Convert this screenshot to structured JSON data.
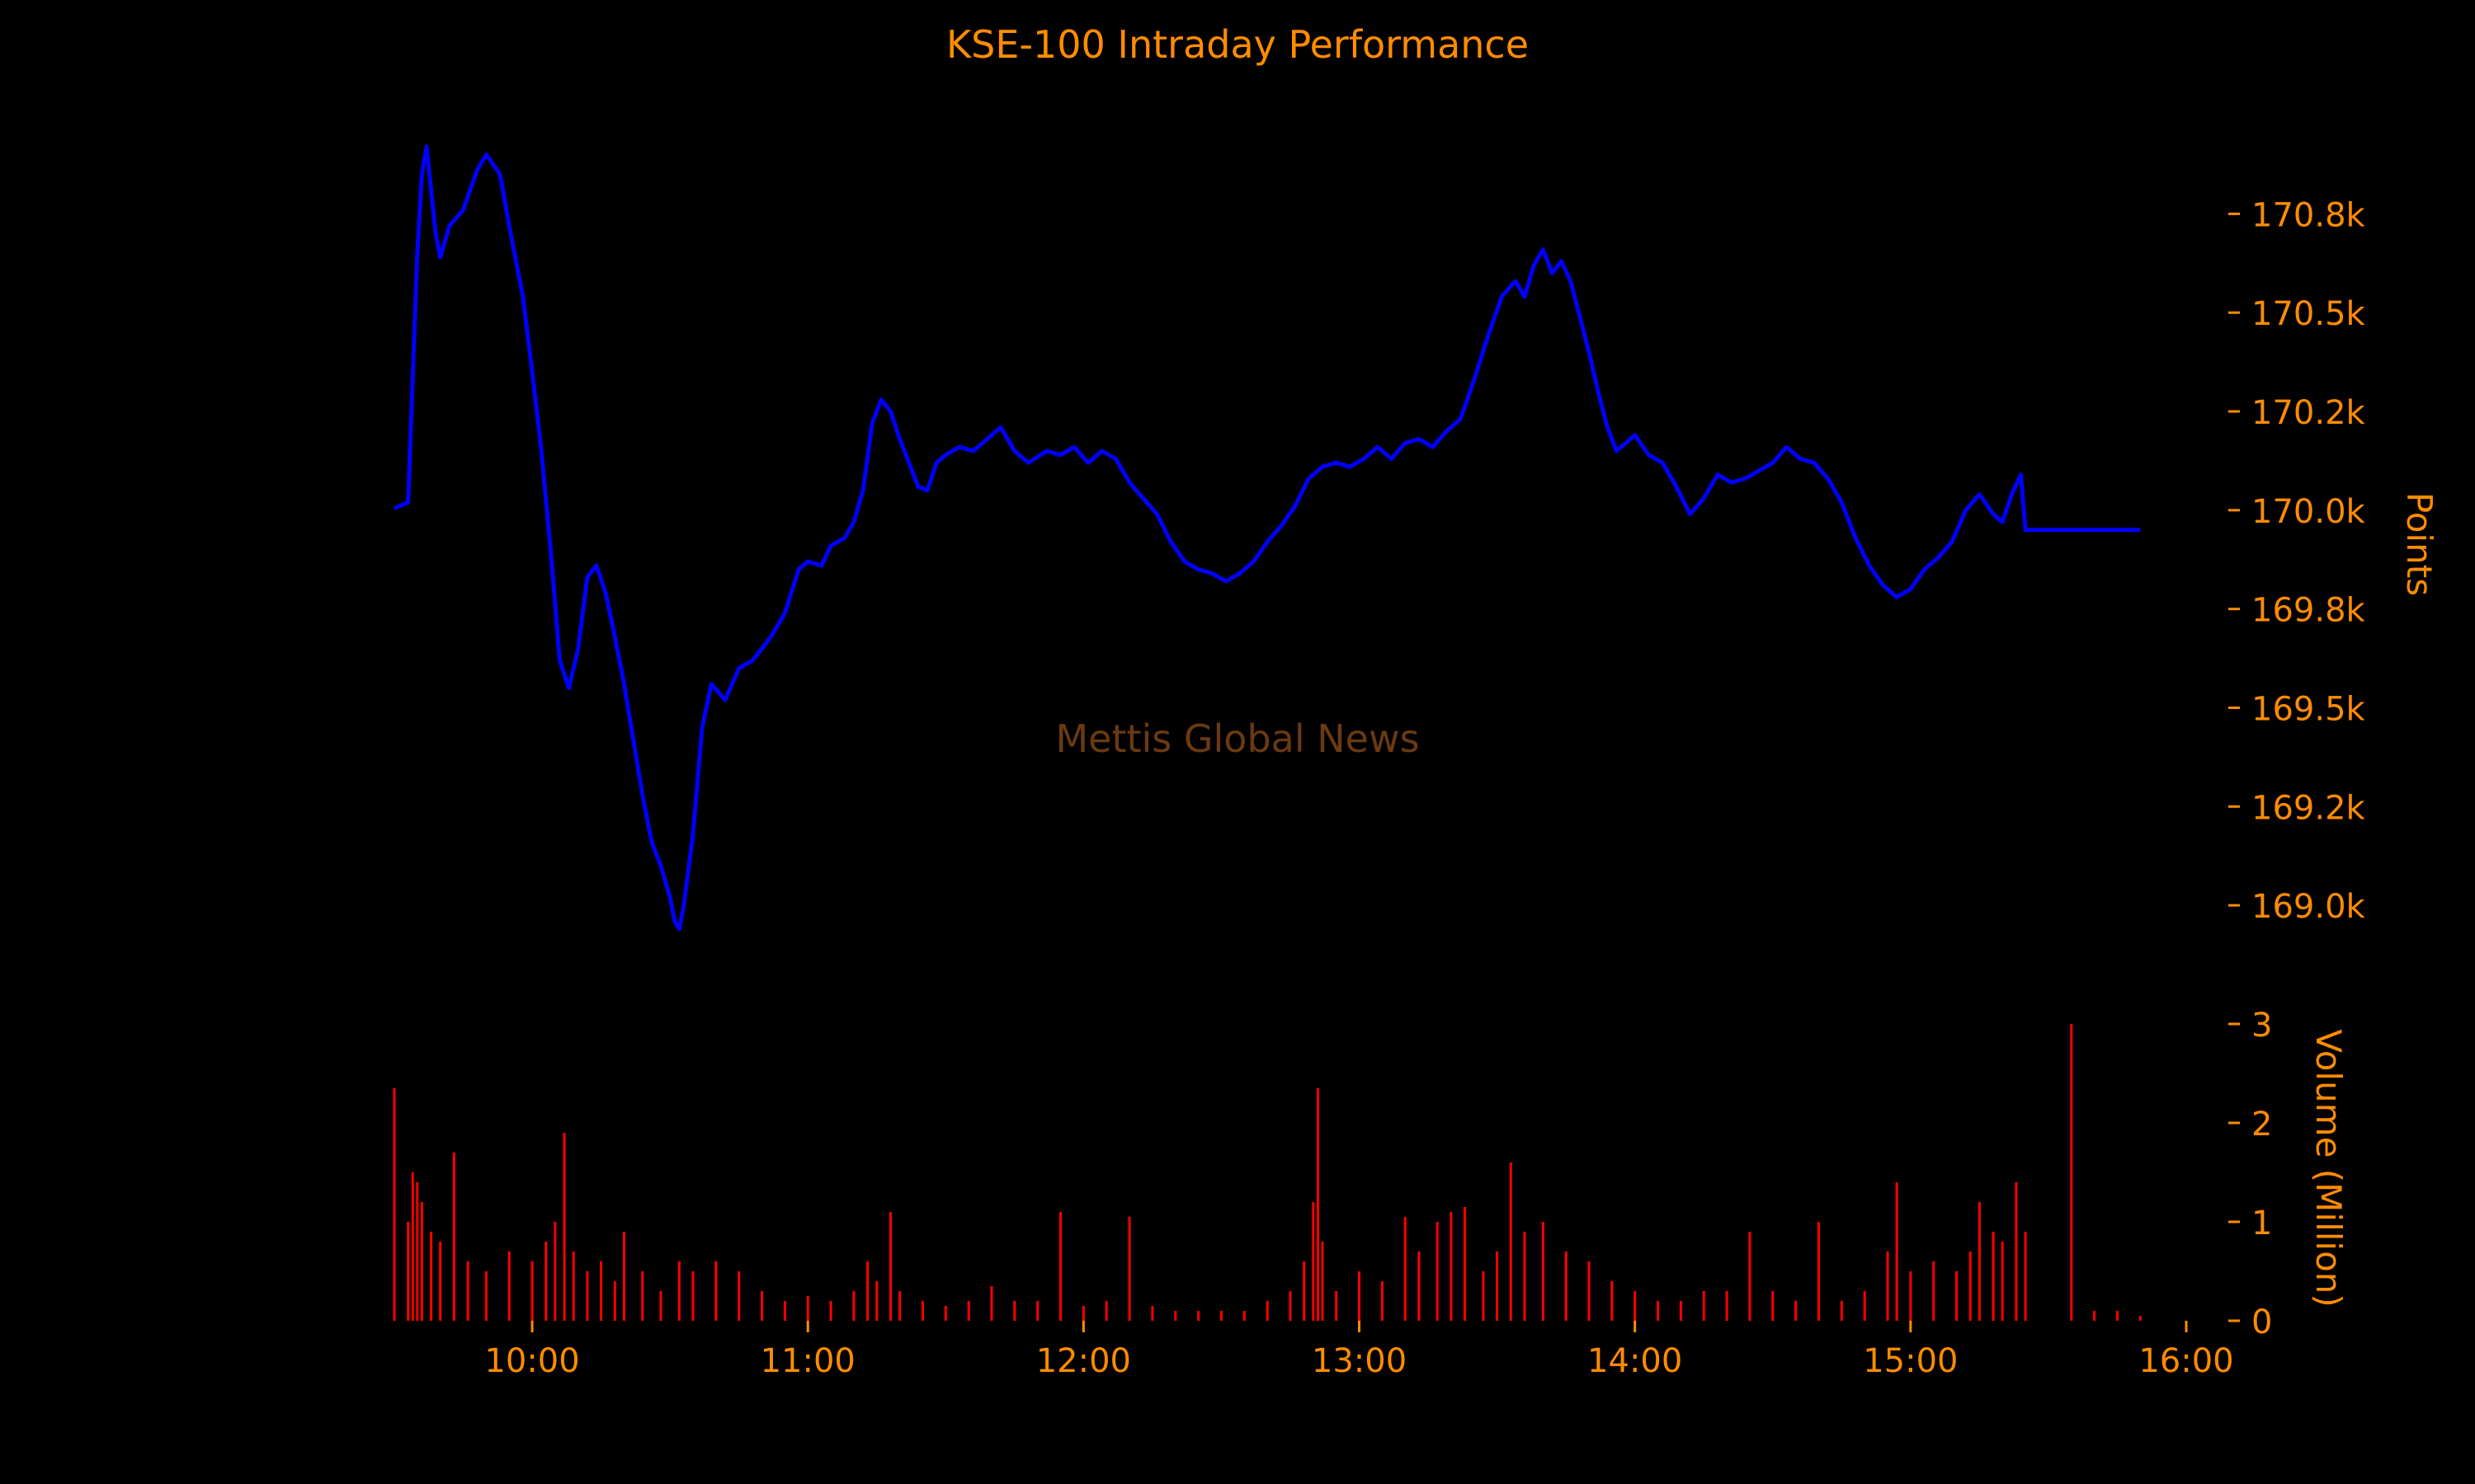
{
  "colors": {
    "background": "#000000",
    "text": "#ff8c00",
    "price_line": "#0000ff",
    "volume_bars": "#ff0000",
    "watermark": "#6b3a10"
  },
  "title": "KSE-100 Intraday Performance",
  "watermark": "Mettis Global News",
  "chart_data": [
    {
      "type": "line",
      "name": "price-panel",
      "title": "KSE-100 Intraday Performance",
      "ylabel": "Points",
      "ylim": [
        168850,
        171020
      ],
      "xlim": [
        "09:30",
        "16:00"
      ],
      "yticks": [
        {
          "value": 169000,
          "label": "169.0k"
        },
        {
          "value": 169250,
          "label": "169.2k"
        },
        {
          "value": 169500,
          "label": "169.5k"
        },
        {
          "value": 169750,
          "label": "169.8k"
        },
        {
          "value": 170000,
          "label": "170.0k"
        },
        {
          "value": 170250,
          "label": "170.2k"
        },
        {
          "value": 170500,
          "label": "170.5k"
        },
        {
          "value": 170750,
          "label": "170.8k"
        }
      ],
      "points": [
        [
          "09:30",
          170005
        ],
        [
          "09:33",
          170020
        ],
        [
          "09:35",
          170650
        ],
        [
          "09:36",
          170850
        ],
        [
          "09:37",
          170920
        ],
        [
          "09:39",
          170700
        ],
        [
          "09:40",
          170640
        ],
        [
          "09:42",
          170720
        ],
        [
          "09:45",
          170760
        ],
        [
          "09:48",
          170860
        ],
        [
          "09:50",
          170900
        ],
        [
          "09:53",
          170850
        ],
        [
          "09:55",
          170720
        ],
        [
          "09:58",
          170540
        ],
        [
          "10:00",
          170350
        ],
        [
          "10:02",
          170150
        ],
        [
          "10:04",
          169900
        ],
        [
          "10:06",
          169620
        ],
        [
          "10:08",
          169550
        ],
        [
          "10:10",
          169650
        ],
        [
          "10:12",
          169830
        ],
        [
          "10:14",
          169860
        ],
        [
          "10:16",
          169790
        ],
        [
          "10:18",
          169680
        ],
        [
          "10:20",
          169560
        ],
        [
          "10:22",
          169420
        ],
        [
          "10:24",
          169280
        ],
        [
          "10:26",
          169160
        ],
        [
          "10:28",
          169100
        ],
        [
          "10:30",
          169020
        ],
        [
          "10:31",
          168960
        ],
        [
          "10:32",
          168940
        ],
        [
          "10:33",
          169000
        ],
        [
          "10:35",
          169180
        ],
        [
          "10:37",
          169450
        ],
        [
          "10:39",
          169560
        ],
        [
          "10:42",
          169520
        ],
        [
          "10:45",
          169600
        ],
        [
          "10:48",
          169620
        ],
        [
          "10:52",
          169680
        ],
        [
          "10:55",
          169740
        ],
        [
          "10:58",
          169850
        ],
        [
          "11:00",
          169870
        ],
        [
          "11:03",
          169860
        ],
        [
          "11:05",
          169910
        ],
        [
          "11:08",
          169930
        ],
        [
          "11:10",
          169970
        ],
        [
          "11:12",
          170050
        ],
        [
          "11:14",
          170220
        ],
        [
          "11:16",
          170280
        ],
        [
          "11:18",
          170250
        ],
        [
          "11:20",
          170180
        ],
        [
          "11:22",
          170120
        ],
        [
          "11:24",
          170060
        ],
        [
          "11:26",
          170050
        ],
        [
          "11:28",
          170120
        ],
        [
          "11:30",
          170140
        ],
        [
          "11:33",
          170160
        ],
        [
          "11:36",
          170150
        ],
        [
          "11:39",
          170180
        ],
        [
          "11:42",
          170210
        ],
        [
          "11:45",
          170150
        ],
        [
          "11:48",
          170120
        ],
        [
          "11:52",
          170150
        ],
        [
          "11:55",
          170140
        ],
        [
          "11:58",
          170160
        ],
        [
          "12:01",
          170120
        ],
        [
          "12:04",
          170150
        ],
        [
          "12:07",
          170130
        ],
        [
          "12:10",
          170070
        ],
        [
          "12:13",
          170030
        ],
        [
          "12:16",
          169990
        ],
        [
          "12:19",
          169920
        ],
        [
          "12:22",
          169870
        ],
        [
          "12:25",
          169850
        ],
        [
          "12:28",
          169840
        ],
        [
          "12:31",
          169820
        ],
        [
          "12:34",
          169840
        ],
        [
          "12:37",
          169870
        ],
        [
          "12:40",
          169920
        ],
        [
          "12:43",
          169960
        ],
        [
          "12:46",
          170010
        ],
        [
          "12:49",
          170080
        ],
        [
          "12:52",
          170110
        ],
        [
          "12:55",
          170120
        ],
        [
          "12:58",
          170110
        ],
        [
          "13:01",
          170130
        ],
        [
          "13:04",
          170160
        ],
        [
          "13:07",
          170130
        ],
        [
          "13:10",
          170170
        ],
        [
          "13:13",
          170180
        ],
        [
          "13:16",
          170160
        ],
        [
          "13:19",
          170200
        ],
        [
          "13:22",
          170230
        ],
        [
          "13:25",
          170330
        ],
        [
          "13:28",
          170440
        ],
        [
          "13:31",
          170540
        ],
        [
          "13:34",
          170580
        ],
        [
          "13:36",
          170540
        ],
        [
          "13:38",
          170620
        ],
        [
          "13:40",
          170660
        ],
        [
          "13:42",
          170600
        ],
        [
          "13:44",
          170630
        ],
        [
          "13:46",
          170580
        ],
        [
          "13:48",
          170490
        ],
        [
          "13:50",
          170400
        ],
        [
          "13:52",
          170300
        ],
        [
          "13:54",
          170210
        ],
        [
          "13:56",
          170150
        ],
        [
          "13:58",
          170170
        ],
        [
          "14:00",
          170190
        ],
        [
          "14:03",
          170140
        ],
        [
          "14:06",
          170120
        ],
        [
          "14:09",
          170060
        ],
        [
          "14:12",
          169990
        ],
        [
          "14:15",
          170030
        ],
        [
          "14:18",
          170090
        ],
        [
          "14:21",
          170070
        ],
        [
          "14:24",
          170080
        ],
        [
          "14:27",
          170100
        ],
        [
          "14:30",
          170120
        ],
        [
          "14:33",
          170160
        ],
        [
          "14:36",
          170130
        ],
        [
          "14:39",
          170120
        ],
        [
          "14:42",
          170080
        ],
        [
          "14:45",
          170020
        ],
        [
          "14:48",
          169930
        ],
        [
          "14:51",
          169860
        ],
        [
          "14:54",
          169810
        ],
        [
          "14:57",
          169780
        ],
        [
          "15:00",
          169800
        ],
        [
          "15:03",
          169850
        ],
        [
          "15:06",
          169880
        ],
        [
          "15:09",
          169920
        ],
        [
          "15:12",
          170000
        ],
        [
          "15:15",
          170040
        ],
        [
          "15:18",
          169990
        ],
        [
          "15:20",
          169970
        ],
        [
          "15:22",
          170040
        ],
        [
          "15:24",
          170090
        ],
        [
          "15:25",
          169950
        ],
        [
          "15:40",
          169950
        ],
        [
          "15:50",
          169950
        ]
      ]
    },
    {
      "type": "bar",
      "name": "volume-panel",
      "ylabel": "Volume (Million)",
      "ylim": [
        0,
        3
      ],
      "xlim": [
        "09:30",
        "16:00"
      ],
      "yticks": [
        {
          "value": 0,
          "label": "0"
        },
        {
          "value": 1,
          "label": "1"
        },
        {
          "value": 2,
          "label": "2"
        },
        {
          "value": 3,
          "label": "3"
        }
      ],
      "xticks": [
        "10:00",
        "11:00",
        "12:00",
        "13:00",
        "14:00",
        "15:00",
        "16:00"
      ],
      "bars": [
        [
          "09:30",
          2.35
        ],
        [
          "09:33",
          1.0
        ],
        [
          "09:34",
          1.5
        ],
        [
          "09:35",
          1.4
        ],
        [
          "09:36",
          1.2
        ],
        [
          "09:38",
          0.9
        ],
        [
          "09:40",
          0.8
        ],
        [
          "09:43",
          1.7
        ],
        [
          "09:46",
          0.6
        ],
        [
          "09:50",
          0.5
        ],
        [
          "09:55",
          0.7
        ],
        [
          "10:00",
          0.6
        ],
        [
          "10:03",
          0.8
        ],
        [
          "10:05",
          1.0
        ],
        [
          "10:07",
          1.9
        ],
        [
          "10:09",
          0.7
        ],
        [
          "10:12",
          0.5
        ],
        [
          "10:15",
          0.6
        ],
        [
          "10:18",
          0.4
        ],
        [
          "10:20",
          0.9
        ],
        [
          "10:24",
          0.5
        ],
        [
          "10:28",
          0.3
        ],
        [
          "10:32",
          0.6
        ],
        [
          "10:35",
          0.5
        ],
        [
          "10:40",
          0.6
        ],
        [
          "10:45",
          0.5
        ],
        [
          "10:50",
          0.3
        ],
        [
          "10:55",
          0.2
        ],
        [
          "11:00",
          0.25
        ],
        [
          "11:05",
          0.2
        ],
        [
          "11:10",
          0.3
        ],
        [
          "11:13",
          0.6
        ],
        [
          "11:15",
          0.4
        ],
        [
          "11:18",
          1.1
        ],
        [
          "11:20",
          0.3
        ],
        [
          "11:25",
          0.2
        ],
        [
          "11:30",
          0.15
        ],
        [
          "11:35",
          0.2
        ],
        [
          "11:40",
          0.35
        ],
        [
          "11:45",
          0.2
        ],
        [
          "11:50",
          0.2
        ],
        [
          "11:55",
          1.1
        ],
        [
          "12:00",
          0.15
        ],
        [
          "12:05",
          0.2
        ],
        [
          "12:10",
          1.05
        ],
        [
          "12:15",
          0.15
        ],
        [
          "12:20",
          0.1
        ],
        [
          "12:25",
          0.1
        ],
        [
          "12:30",
          0.1
        ],
        [
          "12:35",
          0.1
        ],
        [
          "12:40",
          0.2
        ],
        [
          "12:45",
          0.3
        ],
        [
          "12:48",
          0.6
        ],
        [
          "12:50",
          1.2
        ],
        [
          "12:51",
          2.35
        ],
        [
          "12:52",
          0.8
        ],
        [
          "12:55",
          0.3
        ],
        [
          "13:00",
          0.5
        ],
        [
          "13:05",
          0.4
        ],
        [
          "13:10",
          1.05
        ],
        [
          "13:13",
          0.7
        ],
        [
          "13:17",
          1.0
        ],
        [
          "13:20",
          1.1
        ],
        [
          "13:23",
          1.15
        ],
        [
          "13:27",
          0.5
        ],
        [
          "13:30",
          0.7
        ],
        [
          "13:33",
          1.6
        ],
        [
          "13:36",
          0.9
        ],
        [
          "13:40",
          1.0
        ],
        [
          "13:45",
          0.7
        ],
        [
          "13:50",
          0.6
        ],
        [
          "13:55",
          0.4
        ],
        [
          "14:00",
          0.3
        ],
        [
          "14:05",
          0.2
        ],
        [
          "14:10",
          0.2
        ],
        [
          "14:15",
          0.3
        ],
        [
          "14:20",
          0.3
        ],
        [
          "14:25",
          0.9
        ],
        [
          "14:30",
          0.3
        ],
        [
          "14:35",
          0.2
        ],
        [
          "14:40",
          1.0
        ],
        [
          "14:45",
          0.2
        ],
        [
          "14:50",
          0.3
        ],
        [
          "14:55",
          0.7
        ],
        [
          "14:57",
          1.4
        ],
        [
          "15:00",
          0.5
        ],
        [
          "15:05",
          0.6
        ],
        [
          "15:10",
          0.5
        ],
        [
          "15:13",
          0.7
        ],
        [
          "15:15",
          1.2
        ],
        [
          "15:18",
          0.9
        ],
        [
          "15:20",
          0.8
        ],
        [
          "15:23",
          1.4
        ],
        [
          "15:25",
          0.9
        ],
        [
          "15:35",
          3.0
        ],
        [
          "15:40",
          0.1
        ],
        [
          "15:45",
          0.1
        ],
        [
          "15:50",
          0.05
        ]
      ]
    }
  ]
}
